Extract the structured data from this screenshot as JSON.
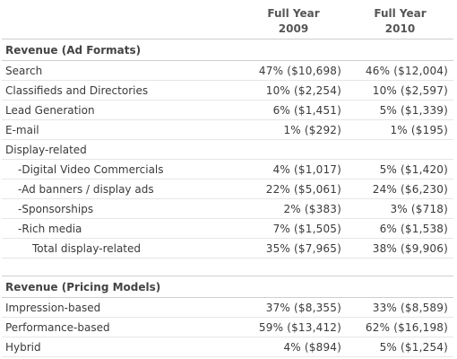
{
  "header": {
    "col1_line1": "Full Year",
    "col1_line2": "2009",
    "col2_line1": "Full Year",
    "col2_line2": "2010"
  },
  "section1": {
    "title": "Revenue (Ad Formats)",
    "rows": [
      {
        "label": "Search",
        "v2009": "47% ($10,698)",
        "v2010": "46% ($12,004)"
      },
      {
        "label": "Classifieds and Directories",
        "v2009": "10% ($2,254)",
        "v2010": "10% ($2,597)"
      },
      {
        "label": "Lead Generation",
        "v2009": "6% ($1,451)",
        "v2010": "5% ($1,339)"
      },
      {
        "label": "E-mail",
        "v2009": "1% ($292)",
        "v2010": "1% ($195)"
      },
      {
        "label": "Display-related",
        "v2009": "",
        "v2010": ""
      },
      {
        "label": "-Digital Video Commercials",
        "v2009": "4% ($1,017)",
        "v2010": "5% ($1,420)"
      },
      {
        "label": "-Ad banners / display ads",
        "v2009": "22% ($5,061)",
        "v2010": "24% ($6,230)"
      },
      {
        "label": "-Sponsorships",
        "v2009": "2% ($383)",
        "v2010": "3% ($718)"
      },
      {
        "label": "-Rich media",
        "v2009": "7% ($1,505)",
        "v2010": "6% ($1,538)"
      },
      {
        "label": "Total display-related",
        "v2009": "35% ($7,965)",
        "v2010": "38% ($9,906)"
      }
    ]
  },
  "section2": {
    "title": "Revenue (Pricing Models)",
    "rows": [
      {
        "label": "Impression-based",
        "v2009": "37% ($8,355)",
        "v2010": "33% ($8,589)"
      },
      {
        "label": "Performance-based",
        "v2009": "59% ($13,412)",
        "v2010": "62% ($16,198)"
      },
      {
        "label": "Hybrid",
        "v2009": "4% ($894)",
        "v2010": "5% ($1,254)"
      }
    ]
  }
}
